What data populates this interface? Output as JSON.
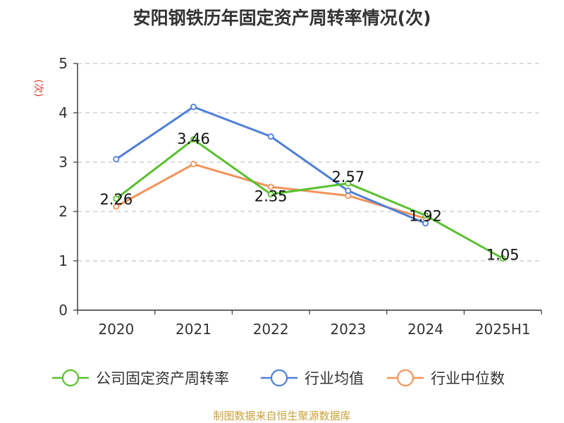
{
  "chart_data": {
    "type": "line",
    "title": "安阳钢铁历年固定资产周转率情况(次)",
    "ylabel": "(次)",
    "categories": [
      "2020",
      "2021",
      "2022",
      "2023",
      "2024",
      "2025H1"
    ],
    "ylim": [
      0,
      5
    ],
    "yticks": [
      0,
      1,
      2,
      3,
      4,
      5
    ],
    "grid": true,
    "legend_position": "bottom",
    "series": [
      {
        "name": "公司固定资产周转率",
        "color": "#58c12e",
        "values": [
          2.26,
          3.46,
          2.35,
          2.57,
          1.92,
          1.05
        ],
        "labels": [
          "2.26",
          "3.46",
          "2.35",
          "2.57",
          "1.92",
          "1.05"
        ]
      },
      {
        "name": "行业均值",
        "color": "#4f7fd8",
        "values": [
          3.06,
          4.12,
          3.52,
          2.42,
          1.76,
          null
        ]
      },
      {
        "name": "行业中位数",
        "color": "#f3935a",
        "values": [
          2.1,
          2.96,
          2.5,
          2.32,
          1.86,
          null
        ]
      }
    ],
    "ylabel_color": "#e23b2e"
  },
  "source_text": "制图数据来自恒生聚源数据库"
}
